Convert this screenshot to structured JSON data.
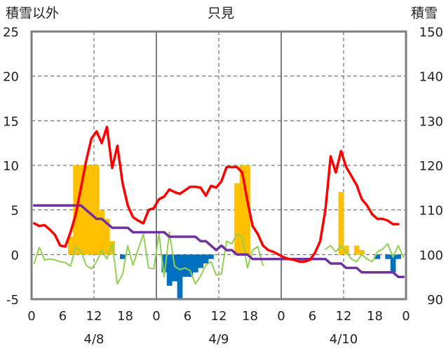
{
  "header": {
    "left_label": "積雪以外",
    "title": "只見",
    "right_label": "積雪"
  },
  "chart_data": {
    "type": "bar+line",
    "title": "只見",
    "y_left": {
      "label": "積雪以外",
      "range": [
        -5,
        25
      ],
      "ticks": [
        -5,
        0,
        5,
        10,
        15,
        20,
        25
      ]
    },
    "y_right": {
      "label": "積雪",
      "range": [
        90,
        150
      ],
      "ticks": [
        90,
        100,
        110,
        120,
        130,
        140,
        150
      ]
    },
    "x_ticks": [
      "0",
      "6",
      "12",
      "18",
      "0",
      "6",
      "12",
      "18",
      "0",
      "6",
      "12",
      "18",
      "0"
    ],
    "day_labels": [
      "4/8",
      "4/9",
      "4/10"
    ],
    "grid": "horizontal dashed, vertical dashed at 12h, solid day separators",
    "colors": {
      "precip_bar": "#ffc000",
      "snowfall_bar_negative": "#0070c0",
      "temperature": "#ff0000",
      "wind": "#92d050",
      "snow_depth": "#7030a0"
    },
    "series": [
      {
        "key": "precip_bar",
        "axis": "left",
        "values": [
          0,
          0,
          0,
          0,
          0,
          0,
          0,
          2,
          10,
          10,
          10,
          10,
          10,
          5,
          4,
          1.5,
          0,
          0,
          0,
          0,
          0,
          0,
          0,
          0,
          0,
          0,
          0,
          0,
          0,
          0,
          0,
          0,
          0,
          0,
          0,
          0,
          0,
          0,
          0,
          8,
          10,
          10,
          0,
          0,
          0,
          0,
          0,
          0,
          0,
          0,
          0,
          0,
          0,
          0,
          0,
          0,
          0,
          0,
          0,
          7,
          1,
          0,
          1,
          0.5,
          0,
          0,
          0,
          0,
          0,
          0,
          0,
          0
        ]
      },
      {
        "key": "snowfall_bar_negative",
        "axis": "left",
        "values": [
          0,
          0,
          0,
          0,
          0,
          0,
          0,
          0,
          0,
          0,
          0,
          0,
          0,
          0,
          0,
          0,
          0,
          -0.5,
          0,
          0,
          0,
          0,
          0,
          0,
          0,
          -2,
          -3.5,
          -3,
          -5,
          -2.5,
          -2.5,
          -2,
          -1.5,
          -1,
          -0.5,
          0,
          0,
          0,
          0,
          0,
          0,
          0,
          0,
          0,
          0,
          0,
          0,
          0,
          0,
          0,
          0,
          0,
          0,
          0,
          0,
          0,
          0,
          0,
          0,
          0,
          0,
          0,
          0,
          0,
          0,
          0,
          -0.5,
          0,
          -0.5,
          -2,
          -0.5,
          0
        ]
      },
      {
        "key": "temperature",
        "axis": "left",
        "values": [
          3.5,
          3.2,
          3.3,
          2.8,
          2.2,
          1.0,
          0.9,
          2.5,
          4.5,
          7.5,
          10.5,
          13,
          13.8,
          12.5,
          14.3,
          9.7,
          12.2,
          8,
          5.5,
          4.2,
          3.8,
          3.5,
          5.0,
          5.2,
          6.2,
          6.5,
          7.3,
          7.0,
          6.8,
          7.2,
          7.6,
          7.6,
          7.5,
          6.6,
          7.7,
          7.5,
          8.2,
          9.8,
          9.8,
          9.8,
          9.2,
          6,
          3.2,
          2.3,
          1.0,
          0.5,
          0.3,
          0,
          -0.3,
          -0.5,
          -0.6,
          -0.8,
          -0.8,
          -0.6,
          0.2,
          1.5,
          5,
          11,
          9.2,
          11.6,
          9.8,
          8.8,
          7.8,
          6.2,
          5.5,
          4.5,
          4.0,
          4.0,
          3.8,
          3.4,
          3.4,
          null
        ]
      },
      {
        "key": "wind",
        "axis": "left",
        "values": [
          -1,
          0.8,
          -0.6,
          -0.5,
          -0.6,
          -0.8,
          -0.9,
          -1.3,
          0.8,
          0.4,
          -1.2,
          -1.6,
          -0.8,
          0.5,
          -0.5,
          1.2,
          -3.3,
          -2.2,
          1.0,
          -1.2,
          0.6,
          2.3,
          -1.5,
          -1.6,
          2.3,
          -2.5,
          2.5,
          -1.3,
          -1.7,
          -1.5,
          -1.8,
          -3.3,
          -2.4,
          -1.2,
          -0.8,
          -2.3,
          -2.2,
          1.5,
          1.2,
          2.3,
          2.0,
          -1.5,
          0.5,
          0.9,
          -1.2,
          null,
          null,
          null,
          null,
          null,
          0.3,
          null,
          null,
          null,
          null,
          null,
          0.6,
          1,
          0.3,
          1,
          0.3,
          -0.5,
          -0.8,
          0,
          -0.5,
          -0.8,
          0.3,
          0.6,
          1.2,
          -0.3,
          1,
          -0.3
        ]
      },
      {
        "key": "snow_depth",
        "axis": "right",
        "values": [
          111,
          111,
          111,
          111,
          111,
          111,
          111,
          111,
          111,
          111,
          110,
          109,
          108,
          108,
          107,
          106,
          106,
          106,
          106,
          105,
          105,
          105,
          105,
          105,
          105,
          105,
          104,
          104,
          104,
          104,
          104,
          104,
          103,
          103,
          102,
          101,
          102,
          101,
          101,
          100,
          100,
          100,
          99,
          99,
          99,
          99,
          99,
          99,
          99,
          99,
          99,
          99,
          99,
          99,
          99,
          99,
          99,
          98,
          98,
          98,
          97,
          97,
          97,
          96,
          96,
          96,
          96,
          96,
          96,
          96,
          95,
          95
        ]
      }
    ]
  }
}
